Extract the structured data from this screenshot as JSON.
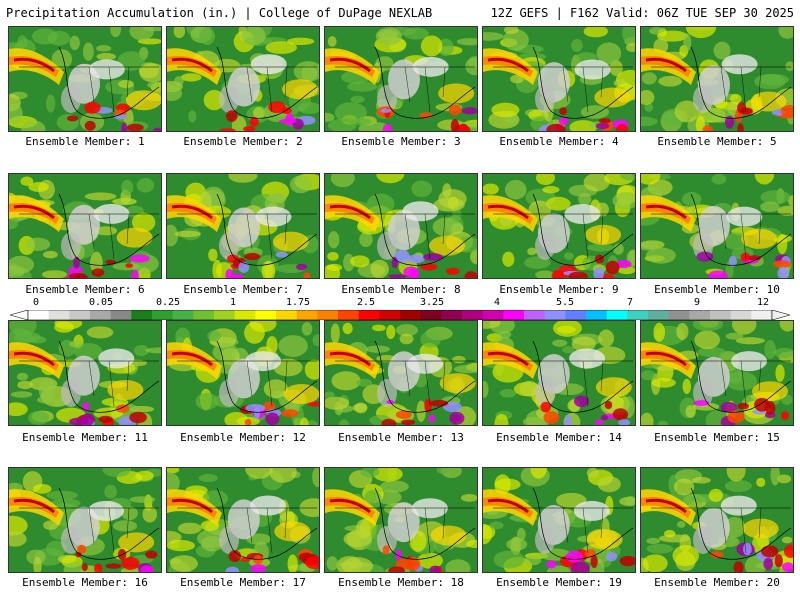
{
  "header": {
    "title_left": "Precipitation Accumulation (in.) | College of DuPage NEXLAB",
    "title_right": "12Z GEFS | F162 Valid: 06Z TUE SEP 30 2025"
  },
  "colorbar": {
    "labels": [
      "0",
      "0.05",
      "0.25",
      "1",
      "1.75",
      "2.5",
      "3.25",
      "4",
      "5.5",
      "7",
      "9",
      "12"
    ],
    "colors": [
      "#ffffff",
      "#e0e0e0",
      "#c8c8c8",
      "#a8a8a8",
      "#888888",
      "#1a7f1a",
      "#2e9e2e",
      "#48b048",
      "#70c030",
      "#a0d020",
      "#d8e800",
      "#ffff00",
      "#ffd700",
      "#ffa500",
      "#ff7f00",
      "#ff4500",
      "#ff0000",
      "#d00000",
      "#a00000",
      "#800020",
      "#900050",
      "#b00080",
      "#d000b0",
      "#ff00ff",
      "#c060ff",
      "#9090ff",
      "#6080ff",
      "#00c0ff",
      "#00ffff",
      "#40d0c0",
      "#60b0a0",
      "#909090",
      "#a8a8a8",
      "#c0c0c0",
      "#d8d8d8",
      "#f0f0f0"
    ]
  },
  "members": [
    {
      "label": "Ensemble Member: 1"
    },
    {
      "label": "Ensemble Member: 2"
    },
    {
      "label": "Ensemble Member: 3"
    },
    {
      "label": "Ensemble Member: 4"
    },
    {
      "label": "Ensemble Member: 5"
    },
    {
      "label": "Ensemble Member: 6"
    },
    {
      "label": "Ensemble Member: 7"
    },
    {
      "label": "Ensemble Member: 8"
    },
    {
      "label": "Ensemble Member: 9"
    },
    {
      "label": "Ensemble Member: 10"
    },
    {
      "label": "Ensemble Member: 11"
    },
    {
      "label": "Ensemble Member: 12"
    },
    {
      "label": "Ensemble Member: 13"
    },
    {
      "label": "Ensemble Member: 14"
    },
    {
      "label": "Ensemble Member: 15"
    },
    {
      "label": "Ensemble Member: 16"
    },
    {
      "label": "Ensemble Member: 17"
    },
    {
      "label": "Ensemble Member: 18"
    },
    {
      "label": "Ensemble Member: 19"
    },
    {
      "label": "Ensemble Member: 20"
    }
  ]
}
